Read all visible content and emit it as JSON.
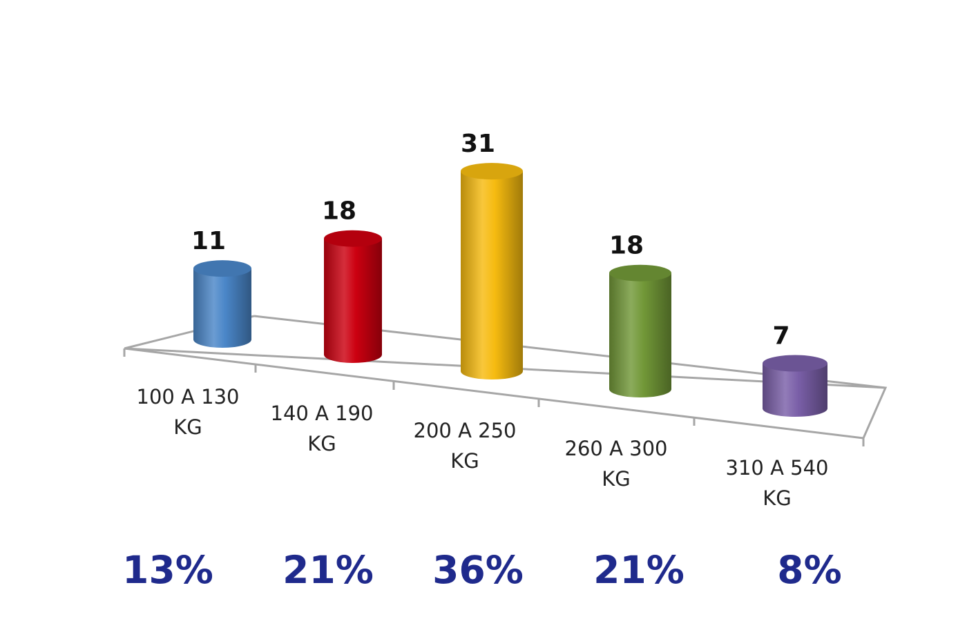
{
  "chart_data": {
    "type": "bar",
    "style": "3d-cylinder",
    "title": "",
    "xlabel": "",
    "ylabel": "",
    "grid": false,
    "legend": "none",
    "categories": [
      [
        "100 A 130",
        "KG"
      ],
      [
        "140 A 190",
        "KG"
      ],
      [
        "200 A 250",
        "KG"
      ],
      [
        "260 A 300",
        "KG"
      ],
      [
        "310 A 540",
        "KG"
      ]
    ],
    "values": [
      11,
      18,
      31,
      18,
      7
    ],
    "value_labels": [
      "11",
      "18",
      "31",
      "18",
      "7"
    ],
    "percentages": [
      "13%",
      "21%",
      "36%",
      "21%",
      "8%"
    ],
    "colors": [
      "#4a86c8",
      "#cc0010",
      "#f6bb10",
      "#729838",
      "#7a5fa8"
    ],
    "percent_color": "#1f2a8c"
  }
}
